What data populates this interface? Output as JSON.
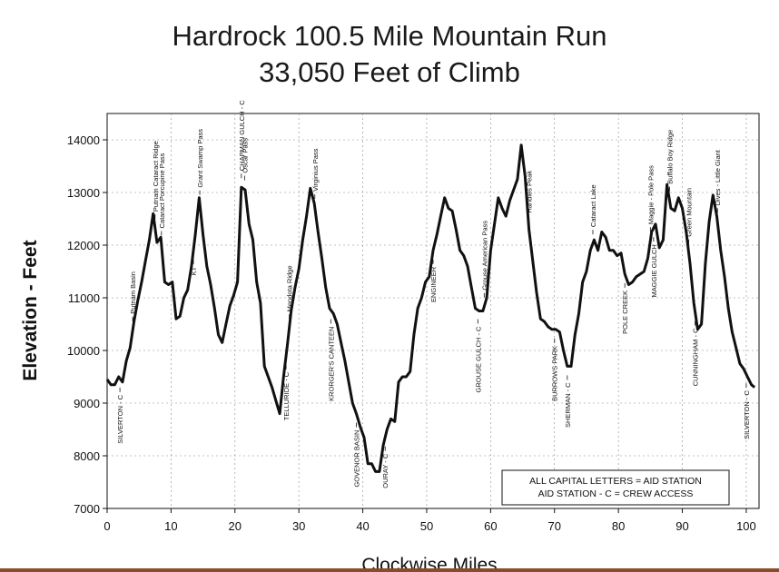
{
  "chart_data": {
    "type": "line",
    "title": "Hardrock 100.5 Mile Mountain Run",
    "subtitle": "33,050 Feet of Climb",
    "xlabel": "Clockwise Miles",
    "ylabel": "Elevation - Feet",
    "xlim": [
      0,
      102
    ],
    "ylim": [
      7000,
      14500
    ],
    "xticks": [
      0,
      10,
      20,
      30,
      40,
      50,
      60,
      70,
      80,
      90,
      100
    ],
    "yticks": [
      7000,
      8000,
      9000,
      10000,
      11000,
      12000,
      13000,
      14000
    ],
    "grid": true,
    "series": [
      {
        "x": [
          0,
          0.6,
          1.2,
          1.8,
          2.4,
          3.0,
          3.6,
          4.2,
          4.8,
          5.4,
          6.0,
          6.6,
          7.2,
          7.8,
          8.4,
          9.0,
          9.6,
          10.2,
          10.8,
          11.4,
          12.0,
          12.6,
          13.2,
          13.8,
          14.4,
          15.0,
          15.6,
          16.2,
          16.8,
          17.4,
          18.0,
          18.6,
          19.2,
          19.8,
          20.4,
          21.0,
          21.6,
          22.2,
          22.8,
          23.4,
          24.0,
          24.6,
          25.2,
          25.8,
          26.4,
          27.0,
          27.6,
          28.2,
          28.8,
          29.4,
          30.0,
          30.6,
          31.2,
          31.8,
          32.4,
          33.0,
          33.6,
          34.2,
          34.8,
          35.4,
          36.0,
          36.6,
          37.2,
          37.8,
          38.4,
          39.0,
          39.6,
          40.2,
          40.8,
          41.4,
          42.0,
          42.6,
          43.2,
          43.8,
          44.4,
          45.0,
          45.6,
          46.2,
          46.8,
          47.4,
          48.0,
          48.6,
          49.2,
          49.8,
          50.4,
          51.0,
          51.6,
          52.2,
          52.8,
          53.4,
          54.0,
          54.6,
          55.2,
          55.8,
          56.4,
          57.0,
          57.6,
          58.2,
          58.8,
          59.4,
          60.0,
          60.6,
          61.2,
          61.8,
          62.4,
          63.0,
          63.6,
          64.2,
          64.8,
          65.4,
          66.0,
          66.6,
          67.2,
          67.8,
          68.4,
          69.0,
          69.6,
          70.2,
          70.8,
          71.4,
          72.0,
          72.6,
          73.2,
          73.8,
          74.4,
          75.0,
          75.6,
          76.2,
          76.8,
          77.4,
          78.0,
          78.6,
          79.2,
          79.8,
          80.4,
          81.0,
          81.6,
          82.2,
          82.8,
          83.4,
          84.0,
          84.6,
          85.2,
          85.8,
          86.4,
          87.0,
          87.6,
          88.2,
          88.8,
          89.4,
          90.0,
          90.6,
          91.2,
          91.8,
          92.4,
          93.0,
          93.6,
          94.2,
          94.8,
          95.4,
          96.0,
          96.6,
          97.2,
          97.8,
          98.4,
          99.0,
          99.6,
          100.2,
          100.8,
          101.3
        ],
        "values": [
          9450,
          9350,
          9350,
          9500,
          9400,
          9800,
          10050,
          10550,
          10950,
          11300,
          11700,
          12100,
          12600,
          12050,
          12150,
          11300,
          11250,
          11300,
          10600,
          10650,
          11000,
          11150,
          11600,
          12200,
          12900,
          12200,
          11600,
          11250,
          10800,
          10300,
          10150,
          10500,
          10850,
          11050,
          11300,
          13100,
          13050,
          12400,
          12100,
          11300,
          10900,
          9700,
          9500,
          9300,
          9050,
          8800,
          9500,
          10100,
          10750,
          11200,
          11550,
          12100,
          12550,
          13080,
          12800,
          12250,
          11750,
          11200,
          10800,
          10700,
          10500,
          10150,
          9800,
          9400,
          9000,
          8800,
          8550,
          8350,
          7850,
          7850,
          7700,
          7700,
          8200,
          8500,
          8700,
          8650,
          9400,
          9500,
          9500,
          9600,
          10300,
          10800,
          11000,
          11300,
          11400,
          11900,
          12200,
          12550,
          12900,
          12700,
          12650,
          12300,
          11900,
          11800,
          11600,
          11200,
          10800,
          10750,
          10750,
          11000,
          11900,
          12400,
          12900,
          12700,
          12550,
          12850,
          13050,
          13250,
          13900,
          13300,
          12300,
          11700,
          11100,
          10600,
          10550,
          10450,
          10400,
          10400,
          10350,
          10000,
          9700,
          9700,
          10300,
          10700,
          11300,
          11500,
          11900,
          12100,
          11900,
          12250,
          12150,
          11900,
          11900,
          11800,
          11850,
          11450,
          11250,
          11300,
          11400,
          11450,
          11500,
          11750,
          12250,
          12400,
          11950,
          12100,
          13150,
          12700,
          12650,
          12900,
          12700,
          12250,
          11650,
          10900,
          10400,
          10500,
          11650,
          12450,
          12950,
          12550,
          11900,
          11400,
          10800,
          10350,
          10050,
          9750,
          9650,
          9500,
          9350,
          9300
        ]
      }
    ],
    "annotations": [
      {
        "x": 2,
        "text": "SILVERTON - C"
      },
      {
        "x": 4,
        "text": "Putnam Basin"
      },
      {
        "x": 7.5,
        "text": "Putnam Cataract Ridge"
      },
      {
        "x": 8.5,
        "text": "Cataract Porcupine Pass"
      },
      {
        "x": 13.5,
        "text": "KT"
      },
      {
        "x": 14.5,
        "text": "Grant Swamp Pass"
      },
      {
        "x": 21,
        "text": "CHAPMAN GULCH - C"
      },
      {
        "x": 21.5,
        "text": "Oscar Pass"
      },
      {
        "x": 28,
        "text": "TELLURIDE - C"
      },
      {
        "x": 28.5,
        "text": "Mendota Ridge"
      },
      {
        "x": 32.5,
        "text": "Virginius Pass"
      },
      {
        "x": 35,
        "text": "KRORGER'S CANTEEN"
      },
      {
        "x": 39,
        "text": "GOVENOR BASIN"
      },
      {
        "x": 43.5,
        "text": "OURAY - C"
      },
      {
        "x": 51,
        "text": "ENGINEER"
      },
      {
        "x": 58,
        "text": "GROUSE GULCH - C"
      },
      {
        "x": 59,
        "text": "Grouse American Pass"
      },
      {
        "x": 66,
        "text": "Handies Peak"
      },
      {
        "x": 70,
        "text": "BURROWS PARK"
      },
      {
        "x": 72,
        "text": "SHERMAN - C"
      },
      {
        "x": 76,
        "text": "Cataract Lake"
      },
      {
        "x": 81,
        "text": "POLE CREEK"
      },
      {
        "x": 85,
        "text": "Maggie - Pole Pass"
      },
      {
        "x": 85.5,
        "text": "MAGGIE GULCH"
      },
      {
        "x": 88,
        "text": "Buffalo Boy Ridge"
      },
      {
        "x": 91,
        "text": "Green Mountain"
      },
      {
        "x": 92,
        "text": "CUNNINGHAM - C"
      },
      {
        "x": 95.5,
        "text": "Dives - Little Giant"
      },
      {
        "x": 100,
        "text": "SILVERTON - C"
      }
    ],
    "legend_box": {
      "line1": "ALL CAPITAL LETTERS = AID STATION",
      "line2": "AID STATION - C = CREW ACCESS"
    }
  }
}
